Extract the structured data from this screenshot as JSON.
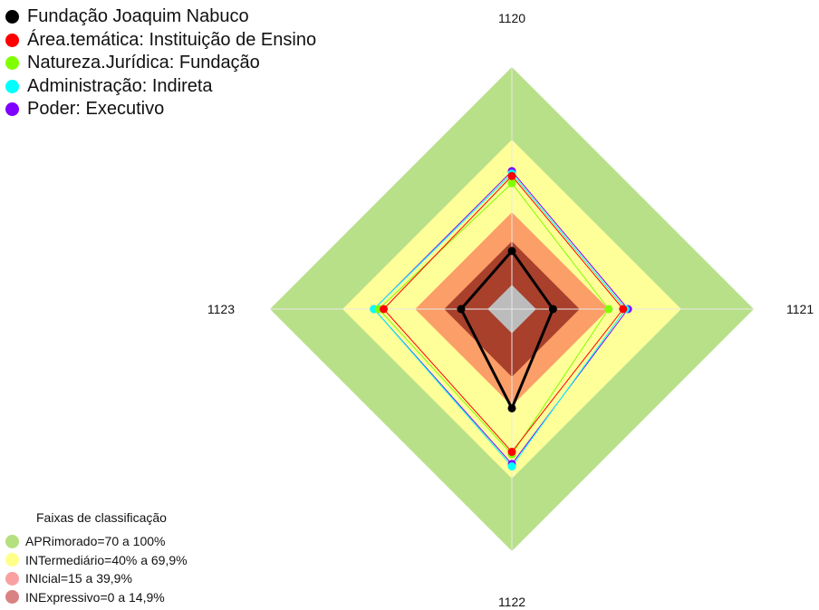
{
  "chart_data": {
    "type": "radar",
    "axes": [
      "1120",
      "1121",
      "1122",
      "1123"
    ],
    "rmax": 100,
    "series": [
      {
        "name": "Fundação Joaquim Nabuco",
        "color": "#000000",
        "values": [
          24,
          17,
          41,
          21
        ]
      },
      {
        "name": "Área.temática: Instituição de Ensino",
        "color": "#ff0000",
        "values": [
          55,
          46,
          59,
          53
        ]
      },
      {
        "name": "Natureza.Jurídica: Fundação",
        "color": "#80ff00",
        "values": [
          52,
          40,
          60,
          55
        ]
      },
      {
        "name": "Administração: Indireta",
        "color": "#00ffff",
        "values": [
          56,
          47,
          65,
          57
        ]
      },
      {
        "name": "Poder: Executivo",
        "color": "#8000ff",
        "values": [
          57,
          48,
          64,
          57
        ]
      }
    ],
    "bands": [
      {
        "label": "APRimorado=70 a 100%",
        "from": 70,
        "to": 100,
        "fill": "#b8e089",
        "swatch": "#b5e07f"
      },
      {
        "label": "INTermediário=40% a 69,9%",
        "from": 40,
        "to": 70,
        "fill": "#ffff99",
        "swatch": "#ffff8a"
      },
      {
        "label": "INIcial=15 a 39,9%",
        "from": 15,
        "to": 40,
        "fill": "#fb9e67",
        "swatch": "#f9a0a0"
      },
      {
        "label": "INExpressivo=0 a 14,9%",
        "from": 0,
        "to": 15,
        "fill": "#d9603c",
        "swatch": "#d98282"
      }
    ],
    "inner_shades": [
      {
        "to": 28,
        "fill": "#a8402c"
      },
      {
        "to": 10,
        "fill": "#bcbcbc"
      }
    ],
    "bands_title": "Faixas de classificação"
  }
}
